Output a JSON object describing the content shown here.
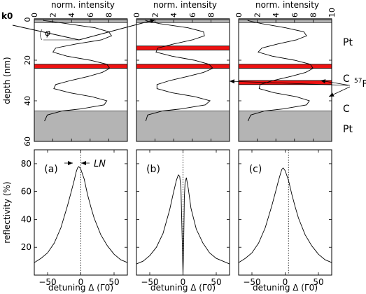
{
  "chart_data": {
    "type": "line",
    "top_axis_label": "norm. intensity",
    "top_ticks": [
      "0",
      "2",
      "4",
      "6",
      "8",
      "10"
    ],
    "depth_label": "depth (nm)",
    "depth_ticks": [
      "0",
      "20",
      "40",
      "60"
    ],
    "bottom_ylabel": "reflectivity (%)",
    "bottom_yticks": [
      "20",
      "40",
      "60",
      "80"
    ],
    "xlabel": "detuning Δ (Γ0)",
    "xticks": [
      "-50",
      "0",
      "50"
    ],
    "layer_labels": [
      "Pt",
      "C",
      "57Fe",
      "C",
      "Pt"
    ],
    "k0_label": "k0",
    "phi_label": "φ",
    "LN_label": "LN",
    "depth_range_nm": [
      0,
      60
    ],
    "intensity_range": [
      0,
      10
    ],
    "detuning_range": [
      -70,
      70
    ],
    "reflectivity_range": [
      0,
      90
    ],
    "columns": [
      {
        "panel_label": "(a)",
        "pt_layers_nm": [
          [
            -0.5,
            1.5
          ],
          [
            45,
            60
          ]
        ],
        "fe_layers_nm": [
          [
            22,
            24
          ]
        ],
        "intensity_profile": [
          [
            0.5,
            1
          ],
          [
            1,
            2
          ],
          [
            2,
            3.5
          ],
          [
            4,
            6.5
          ],
          [
            6,
            8
          ],
          [
            8,
            8.3
          ],
          [
            10,
            7.2
          ],
          [
            12,
            4.5
          ],
          [
            14,
            2.3
          ],
          [
            16,
            2.0
          ],
          [
            18,
            3.5
          ],
          [
            20,
            6.0
          ],
          [
            22,
            7.8
          ],
          [
            24,
            8.1
          ],
          [
            26,
            7.3
          ],
          [
            28,
            5.8
          ],
          [
            30,
            3.9
          ],
          [
            32,
            2.3
          ],
          [
            34,
            2.1
          ],
          [
            36,
            3.8
          ],
          [
            38,
            6.2
          ],
          [
            40,
            7.8
          ],
          [
            42,
            7.5
          ],
          [
            44,
            5.0
          ],
          [
            45,
            3.0
          ],
          [
            47,
            1.4
          ],
          [
            50,
            1.1
          ]
        ],
        "reflectivity": {
          "x": [
            -70,
            -60,
            -50,
            -40,
            -30,
            -20,
            -15,
            -10,
            -7,
            -5,
            -3,
            0,
            5,
            10,
            15,
            20,
            30,
            40,
            50,
            60,
            70
          ],
          "y": [
            9,
            12,
            16,
            23,
            34,
            50,
            59,
            68,
            74,
            77,
            78,
            76,
            69,
            58,
            49,
            41,
            29,
            21,
            15,
            11,
            9
          ]
        },
        "dotted_x": 0
      },
      {
        "panel_label": "(b)",
        "pt_layers_nm": [
          [
            -0.5,
            1.5
          ],
          [
            45,
            60
          ]
        ],
        "fe_layers_nm": [
          [
            13,
            15
          ],
          [
            22,
            24
          ]
        ],
        "intensity_profile": [
          [
            0.5,
            1
          ],
          [
            1,
            1.5
          ],
          [
            2,
            2.5
          ],
          [
            4,
            5.5
          ],
          [
            6,
            7.2
          ],
          [
            8,
            7.3
          ],
          [
            10,
            6.0
          ],
          [
            12,
            4.0
          ],
          [
            14,
            2.3
          ],
          [
            16,
            2.1
          ],
          [
            18,
            3.8
          ],
          [
            20,
            6.2
          ],
          [
            22,
            7.8
          ],
          [
            24,
            8.2
          ],
          [
            26,
            7.2
          ],
          [
            28,
            5.5
          ],
          [
            30,
            3.6
          ],
          [
            32,
            2.2
          ],
          [
            34,
            2.2
          ],
          [
            36,
            3.8
          ],
          [
            38,
            6.3
          ],
          [
            40,
            7.9
          ],
          [
            42,
            7.4
          ],
          [
            44,
            4.8
          ],
          [
            45,
            2.8
          ],
          [
            47,
            1.2
          ],
          [
            50,
            1.0
          ]
        ],
        "reflectivity": {
          "x": [
            -70,
            -60,
            -50,
            -40,
            -30,
            -20,
            -15,
            -10,
            -7,
            -5,
            -3,
            -1,
            0,
            1,
            2,
            3,
            5,
            8,
            12,
            20,
            30,
            40,
            50,
            60,
            70
          ],
          "y": [
            8,
            10,
            14,
            20,
            30,
            47,
            58,
            68,
            72,
            71,
            62,
            20,
            0,
            20,
            55,
            66,
            70,
            62,
            48,
            33,
            23,
            16,
            12,
            10,
            8
          ]
        },
        "dotted_x": 0
      },
      {
        "panel_label": "(c)",
        "pt_layers_nm": [
          [
            -0.5,
            1.5
          ],
          [
            45,
            60
          ]
        ],
        "fe_layers_nm": [
          [
            22,
            24
          ],
          [
            30,
            32
          ]
        ],
        "intensity_profile": [
          [
            0.5,
            1
          ],
          [
            1,
            1.5
          ],
          [
            2,
            2.5
          ],
          [
            4,
            5
          ],
          [
            6,
            7.0
          ],
          [
            8,
            7.3
          ],
          [
            10,
            6.2
          ],
          [
            12,
            4.2
          ],
          [
            14,
            2.5
          ],
          [
            16,
            2.1
          ],
          [
            18,
            3.6
          ],
          [
            20,
            6.0
          ],
          [
            22,
            7.7
          ],
          [
            24,
            8.0
          ],
          [
            26,
            7.2
          ],
          [
            28,
            5.6
          ],
          [
            30,
            3.7
          ],
          [
            32,
            2.3
          ],
          [
            34,
            2.2
          ],
          [
            36,
            3.8
          ],
          [
            38,
            6.2
          ],
          [
            40,
            7.6
          ],
          [
            42,
            7.3
          ],
          [
            44,
            4.8
          ],
          [
            45,
            2.8
          ],
          [
            47,
            1.3
          ],
          [
            50,
            1.0
          ]
        ],
        "reflectivity": {
          "x": [
            -70,
            -60,
            -50,
            -40,
            -30,
            -20,
            -15,
            -10,
            -7,
            -5,
            -3,
            0,
            5,
            10,
            15,
            20,
            30,
            40,
            50,
            60,
            70
          ],
          "y": [
            9,
            12,
            16,
            23,
            34,
            50,
            59,
            68,
            73,
            76,
            77,
            75,
            68,
            58,
            49,
            41,
            29,
            21,
            15,
            11,
            9
          ]
        },
        "dotted_x": 5
      }
    ]
  }
}
